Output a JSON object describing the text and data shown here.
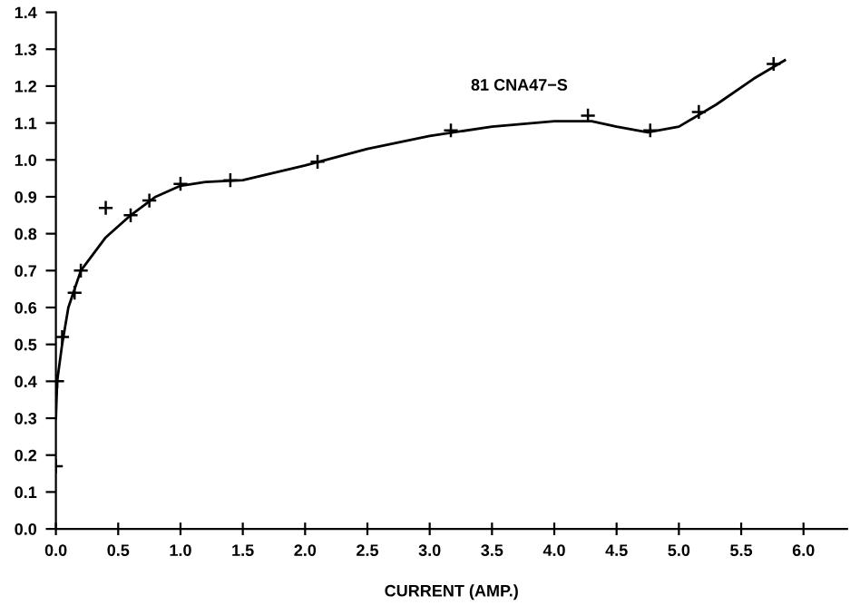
{
  "chart_data": {
    "type": "scatter",
    "xlabel": "CURRENT (AMP.)",
    "marker": "cross",
    "grid": false,
    "legend": false,
    "series": [
      {
        "color": "#000000",
        "x": [
          0.0,
          0.01,
          0.05,
          0.15,
          0.2,
          0.4,
          0.6,
          0.75,
          1.0,
          1.4,
          2.1,
          3.17,
          4.27,
          4.77,
          5.16,
          5.76
        ],
        "values": [
          0.17,
          0.4,
          0.52,
          0.64,
          0.7,
          0.87,
          0.85,
          0.89,
          0.935,
          0.945,
          0.995,
          1.08,
          1.12,
          1.08,
          1.13,
          1.26
        ]
      },
      {
        "type": "line",
        "color": "#000000",
        "marker": "none",
        "x": [
          0.0,
          0.01,
          0.05,
          0.1,
          0.2,
          0.4,
          0.6,
          0.8,
          1.0,
          1.2,
          1.5,
          2.0,
          2.5,
          3.0,
          3.5,
          4.0,
          4.3,
          4.5,
          4.75,
          5.0,
          5.3,
          5.6,
          5.85
        ],
        "values": [
          0.3,
          0.4,
          0.5,
          0.6,
          0.7,
          0.79,
          0.85,
          0.9,
          0.93,
          0.94,
          0.945,
          0.985,
          1.03,
          1.065,
          1.09,
          1.105,
          1.105,
          1.09,
          1.075,
          1.09,
          1.15,
          1.22,
          1.27
        ]
      }
    ],
    "annotations": [
      {
        "text": "81 CNA47−S",
        "x": 4.27,
        "y": 1.12
      }
    ],
    "xlim": [
      0,
      6.35
    ],
    "ylim": [
      0,
      1.4
    ],
    "xticks": [
      {
        "value": 0,
        "label": "0.0"
      },
      {
        "value": 0.5,
        "label": "0.5"
      },
      {
        "value": 1,
        "label": "1.0"
      },
      {
        "value": 1.5,
        "label": "1.5"
      },
      {
        "value": 2,
        "label": "2.0"
      },
      {
        "value": 2.5,
        "label": "2.5"
      },
      {
        "value": 3,
        "label": "3.0"
      },
      {
        "value": 3.5,
        "label": "3.5"
      },
      {
        "value": 4,
        "label": "4.0"
      },
      {
        "value": 4.5,
        "label": "4.5"
      },
      {
        "value": 5,
        "label": "5.0"
      },
      {
        "value": 5.5,
        "label": "5.5"
      },
      {
        "value": 6,
        "label": "6.0"
      }
    ],
    "yticks": [
      {
        "value": 0,
        "label": "0.0"
      },
      {
        "value": 0.1,
        "label": "0.1"
      },
      {
        "value": 0.2,
        "label": "0.2"
      },
      {
        "value": 0.3,
        "label": "0.3"
      },
      {
        "value": 0.4,
        "label": "0.4"
      },
      {
        "value": 0.5,
        "label": "0.5"
      },
      {
        "value": 0.6,
        "label": "0.6"
      },
      {
        "value": 0.7,
        "label": "0.7"
      },
      {
        "value": 0.8,
        "label": "0.8"
      },
      {
        "value": 0.9,
        "label": "0.9"
      },
      {
        "value": 1.0,
        "label": "1.0"
      },
      {
        "value": 1.1,
        "label": "1.1"
      },
      {
        "value": 1.2,
        "label": "1.2"
      },
      {
        "value": 1.3,
        "label": "1.3"
      },
      {
        "value": 1.4,
        "label": "1.4"
      }
    ]
  }
}
